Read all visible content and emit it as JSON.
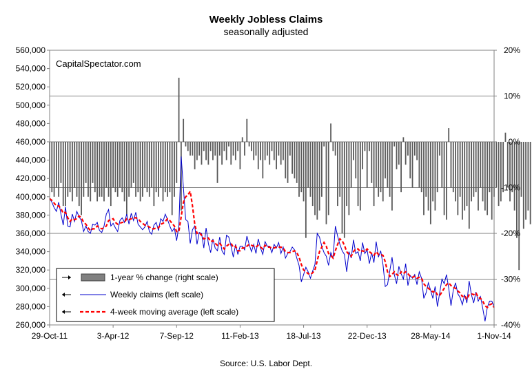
{
  "chart_data": {
    "type": "line",
    "title": "Weekly Jobless Claims",
    "subtitle": "seasonally adjusted",
    "source": "Source: U.S. Labor Dept.",
    "watermark": "CapitalSpectator.com",
    "x_tick_labels": [
      "29-Oct-11",
      "3-Apr-12",
      "7-Sep-12",
      "11-Feb-13",
      "18-Jul-13",
      "22-Dec-13",
      "28-May-14",
      "1-Nov-14"
    ],
    "left_axis": {
      "ylim": [
        260000,
        560000
      ],
      "tick_values": [
        260000,
        280000,
        300000,
        320000,
        340000,
        360000,
        380000,
        400000,
        420000,
        440000,
        460000,
        480000,
        500000,
        520000,
        540000,
        560000
      ],
      "tick_labels": [
        "260,000",
        "280,000",
        "300,000",
        "320,000",
        "340,000",
        "360,000",
        "380,000",
        "400,000",
        "420,000",
        "440,000",
        "460,000",
        "480,000",
        "500,000",
        "520,000",
        "540,000",
        "560,000"
      ]
    },
    "right_axis": {
      "ylim": [
        -40,
        20
      ],
      "tick_values": [
        -40,
        -30,
        -20,
        -10,
        0,
        10,
        20
      ],
      "tick_labels": [
        "-40%",
        "-30%",
        "-20%",
        "-10%",
        "0%",
        "10%",
        "20%"
      ],
      "gridlines": [
        -30,
        -20,
        -10,
        0,
        10
      ]
    },
    "legend": [
      {
        "label": "1-year % change (right scale)",
        "marker": "bar"
      },
      {
        "label": "Weekly claims (left scale)",
        "marker": "line"
      },
      {
        "label": "4-week moving average (left scale)",
        "marker": "dashed"
      }
    ],
    "series": [
      {
        "name": "1-year % change (right scale)",
        "type": "bar",
        "color": "#595959",
        "values": [
          -10,
          -11,
          -12,
          -10,
          -12,
          -9,
          -14,
          -14,
          -12,
          -11,
          -13,
          -10,
          -12,
          -14,
          -16,
          -12,
          -9,
          -12,
          -13,
          -9,
          -11,
          -13,
          -12,
          -12,
          -13,
          -10,
          -12,
          -14,
          -10,
          -11,
          -12,
          -10,
          -11,
          -13,
          -16,
          -12,
          -10,
          -9,
          -12,
          -11,
          -13,
          -12,
          -10,
          -11,
          -12,
          -10,
          -14,
          -11,
          -12,
          -10,
          -13,
          -11,
          -12,
          -11,
          -16,
          -12,
          -9,
          14,
          -15,
          5,
          -1,
          -2,
          -3,
          -3,
          -6,
          -4,
          -3,
          -5,
          -2,
          -4,
          -5,
          -2,
          -4,
          -3,
          -9,
          -3,
          -5,
          -2,
          -4,
          -1,
          -5,
          -3,
          -4,
          -2,
          -6,
          1,
          -3,
          5,
          -1,
          -2,
          -4,
          -3,
          -6,
          -4,
          -8,
          -4,
          -3,
          -5,
          -2,
          -4,
          -6,
          -3,
          -5,
          -4,
          -8,
          -9,
          -3,
          -7,
          -8,
          -9,
          -12,
          -11,
          -13,
          -21,
          -10,
          -12,
          -14,
          -16,
          -17,
          -15,
          -12,
          -1,
          -18,
          -16,
          4,
          -2,
          -3,
          -14,
          -12,
          -20,
          -21,
          -14,
          -16,
          -10,
          -4,
          -8,
          -14,
          -15,
          -6,
          -2,
          -10,
          -2,
          -9,
          -14,
          -10,
          -12,
          -11,
          -13,
          -8,
          -10,
          -12,
          -15,
          -1,
          -6,
          -5,
          -11,
          1,
          -5,
          -3,
          -8,
          -10,
          -3,
          -4,
          -10,
          -11,
          -16,
          -12,
          -15,
          -18,
          -13,
          -15,
          -11,
          -3,
          -10,
          -16,
          -17,
          3,
          -10,
          -11,
          -13,
          -16,
          -12,
          -17,
          -15,
          -14,
          -19,
          -13,
          -12,
          -11,
          -15,
          -10,
          -13,
          -15,
          -16,
          -11,
          -17,
          -12,
          -10,
          -14,
          -13,
          -11,
          2,
          -10,
          -13,
          -11,
          -15,
          -21,
          -28,
          -12,
          -19,
          -17,
          -15,
          -18
        ]
      },
      {
        "name": "Weekly claims (left scale)",
        "type": "line",
        "color": "#0000cc",
        "values": [
          398000,
          394000,
          388000,
          384000,
          394000,
          381000,
          369000,
          389000,
          368000,
          367000,
          381000,
          373000,
          384000,
          378000,
          374000,
          362000,
          368000,
          362000,
          360000,
          370000,
          369000,
          372000,
          363000,
          361000,
          368000,
          381000,
          386000,
          368000,
          371000,
          366000,
          362000,
          374000,
          377000,
          372000,
          381000,
          370000,
          382000,
          374000,
          383000,
          370000,
          367000,
          364000,
          367000,
          373000,
          362000,
          359000,
          369000,
          372000,
          363000,
          376000,
          373000,
          381000,
          375000,
          368000,
          362000,
          366000,
          352000,
          368000,
          444000,
          410000,
          375000,
          373000,
          349000,
          364000,
          368000,
          348000,
          361000,
          360000,
          344000,
          366000,
          349000,
          339000,
          354000,
          344000,
          341000,
          356000,
          341000,
          337000,
          358000,
          356000,
          346000,
          334000,
          348000,
          337000,
          346000,
          346000,
          342000,
          357000,
          348000,
          340000,
          348000,
          338000,
          354000,
          344000,
          337000,
          351000,
          346000,
          346000,
          339000,
          348000,
          344000,
          350000,
          338000,
          345000,
          333000,
          338000,
          340000,
          345000,
          342000,
          333000,
          325000,
          307000,
          315000,
          323000,
          318000,
          311000,
          319000,
          326000,
          360000,
          356000,
          346000,
          339000,
          335000,
          325000,
          339000,
          333000,
          368000,
          357000,
          348000,
          341000,
          337000,
          318000,
          340000,
          333000,
          353000,
          338000,
          340000,
          330000,
          350000,
          338000,
          342000,
          327000,
          339000,
          328000,
          351000,
          334000,
          341000,
          326000,
          302000,
          304000,
          319000,
          334000,
          315000,
          305000,
          324000,
          316000,
          310000,
          327000,
          303000,
          314000,
          311000,
          315000,
          304000,
          318000,
          311000,
          289000,
          295000,
          306000,
          298000,
          289000,
          302000,
          280000,
          295000,
          310000,
          305000,
          315000,
          300000,
          281000,
          298000,
          306000,
          294000,
          290000,
          282000,
          293000,
          284000,
          308000,
          293000,
          284000,
          296000,
          286000,
          291000,
          278000,
          264000,
          279000,
          286000,
          286000,
          280000
        ]
      },
      {
        "name": "4-week moving average (left scale)",
        "type": "line",
        "style": "dashed",
        "color": "#ff0000",
        "values": [
          398000,
          396000,
          393000,
          390000,
          390000,
          387000,
          382000,
          383000,
          377000,
          373000,
          376000,
          375000,
          376000,
          379000,
          377000,
          372000,
          370000,
          366000,
          363000,
          365000,
          365000,
          368000,
          366000,
          365000,
          366000,
          368000,
          374000,
          375000,
          376000,
          372000,
          370000,
          371000,
          372000,
          372000,
          376000,
          375000,
          376000,
          377000,
          377000,
          376000,
          373000,
          371000,
          369000,
          368000,
          367000,
          365000,
          365000,
          366000,
          366000,
          370000,
          371000,
          373000,
          376000,
          374000,
          371000,
          368000,
          362000,
          362000,
          378000,
          394000,
          400000,
          402000,
          406000,
          390000,
          370000,
          360000,
          361000,
          358000,
          354000,
          355000,
          355000,
          351000,
          352000,
          349000,
          347000,
          349000,
          346000,
          343000,
          346000,
          348000,
          349000,
          345000,
          346000,
          341000,
          341000,
          344000,
          344000,
          346000,
          348000,
          347000,
          346000,
          345000,
          347000,
          345000,
          343000,
          347000,
          345000,
          345000,
          344000,
          344000,
          345000,
          345000,
          345000,
          344000,
          340000,
          339000,
          339000,
          340000,
          341000,
          339000,
          334000,
          326000,
          320000,
          318000,
          316000,
          315000,
          317000,
          320000,
          330000,
          340000,
          345000,
          350000,
          346000,
          338000,
          336000,
          333000,
          341000,
          348000,
          354000,
          352000,
          347000,
          340000,
          337000,
          335000,
          340000,
          343000,
          343000,
          340000,
          341000,
          340000,
          343000,
          340000,
          338000,
          336000,
          340000,
          337000,
          337000,
          336000,
          329000,
          318000,
          313000,
          315000,
          318000,
          315000,
          314000,
          318000,
          316000,
          318000,
          316000,
          313000,
          312000,
          313000,
          311000,
          312000,
          311000,
          305000,
          302000,
          300000,
          298000,
          296000,
          297000,
          293000,
          292000,
          296000,
          300000,
          304000,
          306000,
          303000,
          301000,
          300000,
          297000,
          295000,
          291000,
          292000,
          288000,
          293000,
          294000,
          293000,
          295000,
          290000,
          289000,
          286000,
          281000,
          279000,
          282000,
          283000,
          279000
        ]
      }
    ]
  }
}
